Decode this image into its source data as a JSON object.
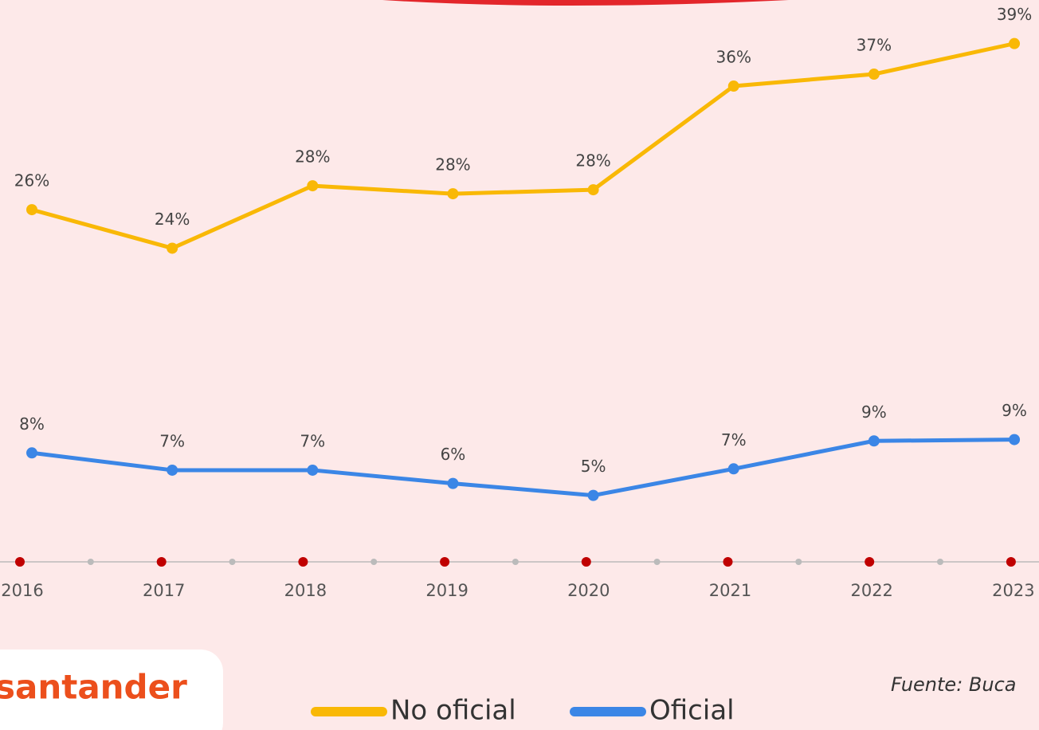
{
  "chart_data": {
    "type": "line",
    "categories": [
      "2016",
      "2017",
      "2018",
      "2019",
      "2020",
      "2021",
      "2022",
      "2023"
    ],
    "series": [
      {
        "name": "No oficial",
        "color": "#f9b806",
        "values": [
          26.5,
          23.6,
          28.3,
          27.7,
          28.0,
          35.8,
          36.7,
          39.0
        ],
        "value_labels": [
          "26%",
          "24%",
          "28%",
          "28%",
          "28%",
          "36%",
          "37%",
          "39%"
        ]
      },
      {
        "name": "Oficial",
        "color": "#3b86e6",
        "values": [
          8.2,
          6.9,
          6.9,
          5.9,
          5.0,
          7.0,
          9.1,
          9.2
        ],
        "value_labels": [
          "8%",
          "7%",
          "7%",
          "6%",
          "5%",
          "7%",
          "9%",
          "9%"
        ]
      }
    ],
    "ylim": [
      0,
      40
    ],
    "source": "Fuente: Buca",
    "logo": "santander"
  }
}
